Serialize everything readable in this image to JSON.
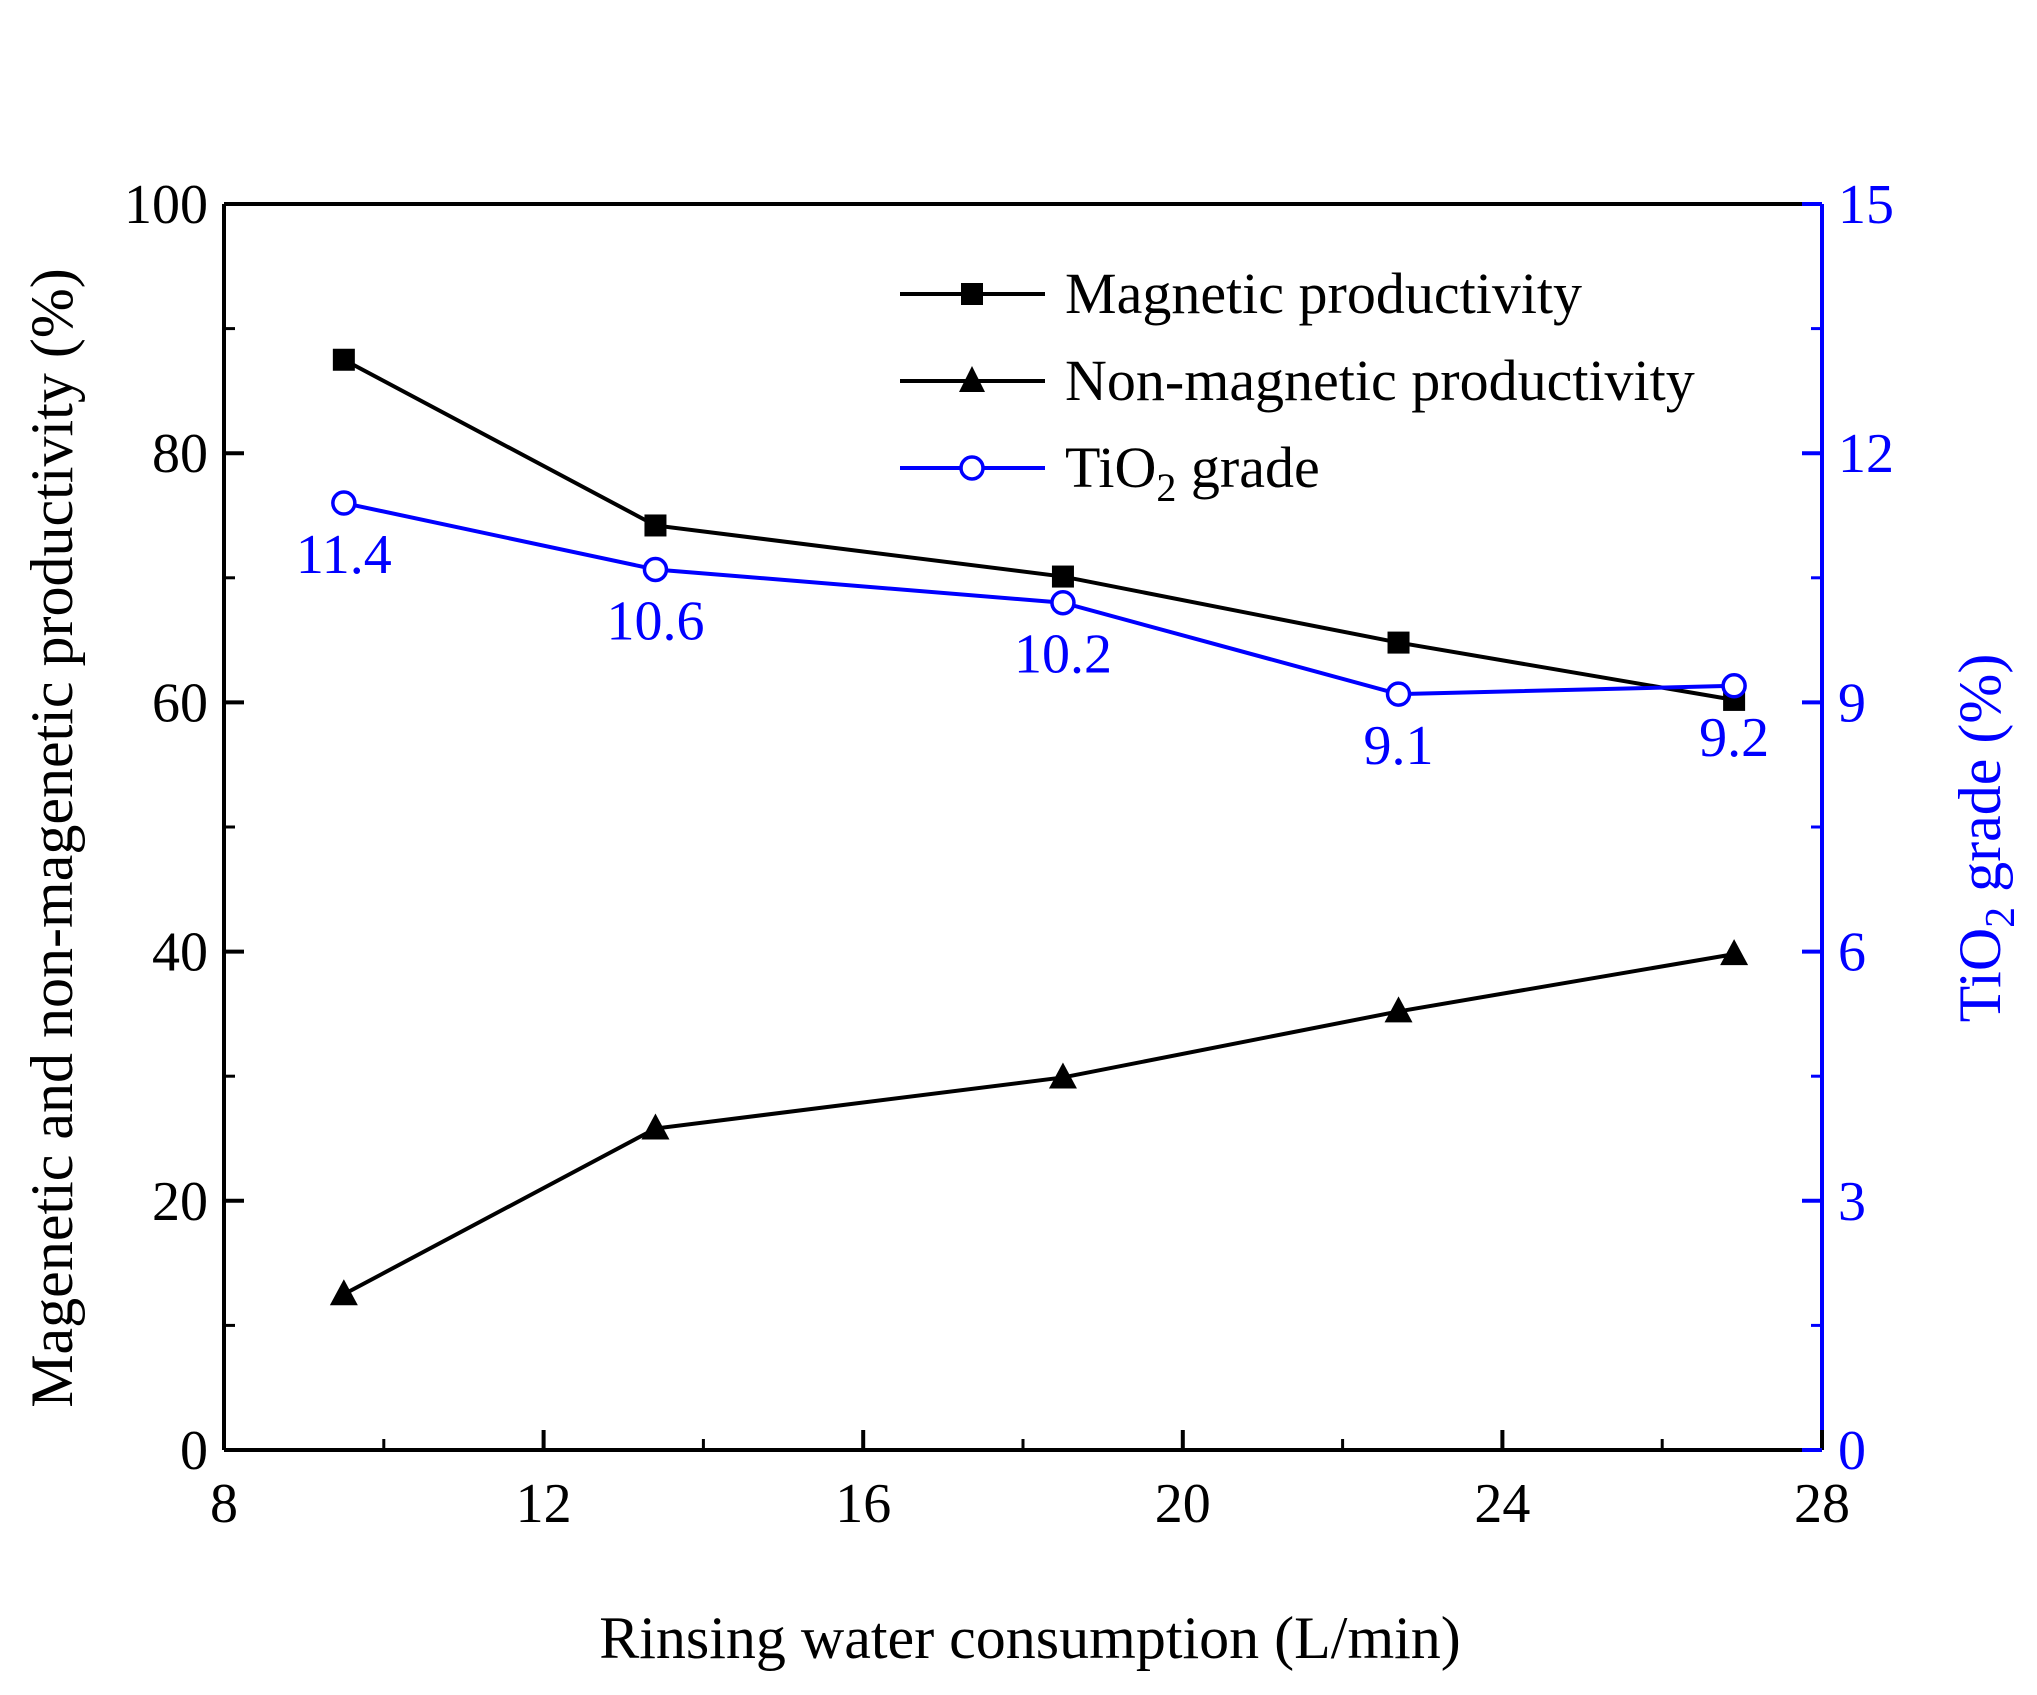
{
  "chart_data": {
    "type": "line",
    "xlabel": "Rinsing water consumption (L/min)",
    "ylabel_left": "Magenetic and non-magenetic productivity (%)",
    "ylabel_right": {
      "main": "TiO",
      "sub": "2",
      "rest": " grade (%)"
    },
    "xlim": [
      8,
      28
    ],
    "ylim_left": [
      0,
      100
    ],
    "ylim_right": [
      0,
      15
    ],
    "x_ticks": [
      8,
      12,
      16,
      20,
      24,
      28
    ],
    "x_tick_labels": [
      "8",
      "12",
      "16",
      "20",
      "24",
      "28"
    ],
    "y_left_ticks": [
      0,
      20,
      40,
      60,
      80,
      100
    ],
    "y_left_tick_labels": [
      "0",
      "20",
      "40",
      "60",
      "80",
      "100"
    ],
    "y_right_ticks": [
      0,
      3,
      6,
      9,
      12,
      15
    ],
    "y_right_tick_labels": [
      "0",
      "3",
      "6",
      "9",
      "12",
      "15"
    ],
    "x": [
      9.5,
      13.4,
      18.5,
      22.7,
      26.9
    ],
    "series": [
      {
        "name": "Magnetic productivity",
        "axis": "left",
        "marker": "square",
        "color": "#000000",
        "values": [
          87.5,
          74.2,
          70.1,
          64.8,
          60.2
        ]
      },
      {
        "name": "Non-magnetic productivity",
        "axis": "left",
        "marker": "triangle",
        "color": "#000000",
        "values": [
          12.5,
          25.8,
          29.9,
          35.2,
          39.8
        ]
      },
      {
        "name_main": "TiO",
        "name_sub": "2",
        "name_rest": " grade",
        "axis": "right",
        "marker": "circle-open",
        "color": "#0000ff",
        "values": [
          11.4,
          10.6,
          10.2,
          9.1,
          9.2
        ],
        "labels": [
          "11.4",
          "10.6",
          "10.2",
          "9.1",
          "9.2"
        ]
      }
    ],
    "legend_position": "top-right",
    "grid": false,
    "colors": {
      "axis": "#000000",
      "tio2": "#0000ff"
    }
  }
}
